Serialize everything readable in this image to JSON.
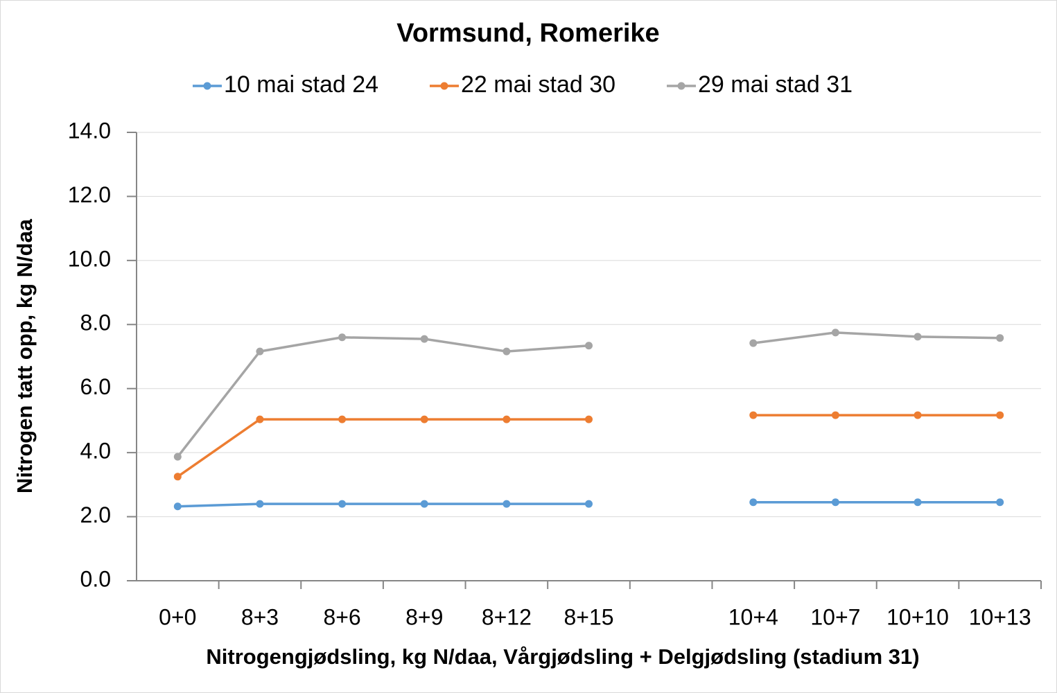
{
  "chart_data": {
    "type": "line",
    "title": "Vormsund, Romerike",
    "x_label": "Nitrogengjødsling, kg N/daa, Vårgjødsling + Delgjødsling (stadium 31)",
    "y_label": "Nitrogen tatt opp, kg N/daa",
    "categories": [
      "0+0",
      "8+3",
      "8+6",
      "8+9",
      "8+12",
      "8+15",
      null,
      "10+4",
      "10+7",
      "10+10",
      "10+13"
    ],
    "series": [
      {
        "name": "10 mai stad 24",
        "color": "#5b9bd5",
        "values": [
          2.32,
          2.4,
          2.4,
          2.4,
          2.4,
          2.4,
          null,
          2.45,
          2.45,
          2.45,
          2.45
        ]
      },
      {
        "name": "22 mai stad 30",
        "color": "#ed7d31",
        "values": [
          3.25,
          5.04,
          5.04,
          5.04,
          5.04,
          5.04,
          null,
          5.17,
          5.17,
          5.17,
          5.17
        ]
      },
      {
        "name": "29 mai stad 31",
        "color": "#a5a5a5",
        "values": [
          3.87,
          7.16,
          7.6,
          7.55,
          7.16,
          7.34,
          null,
          7.42,
          7.75,
          7.62,
          7.58
        ]
      }
    ],
    "ylim": [
      0,
      14
    ],
    "yticks": [
      {
        "value": 0,
        "label": "0.0"
      },
      {
        "value": 2,
        "label": "2.0"
      },
      {
        "value": 4,
        "label": "4.0"
      },
      {
        "value": 6,
        "label": "6.0"
      },
      {
        "value": 8,
        "label": "8.0"
      },
      {
        "value": 10,
        "label": "10.0"
      },
      {
        "value": 12,
        "label": "12.0"
      },
      {
        "value": 14,
        "label": "14.0"
      }
    ],
    "grid": true
  }
}
